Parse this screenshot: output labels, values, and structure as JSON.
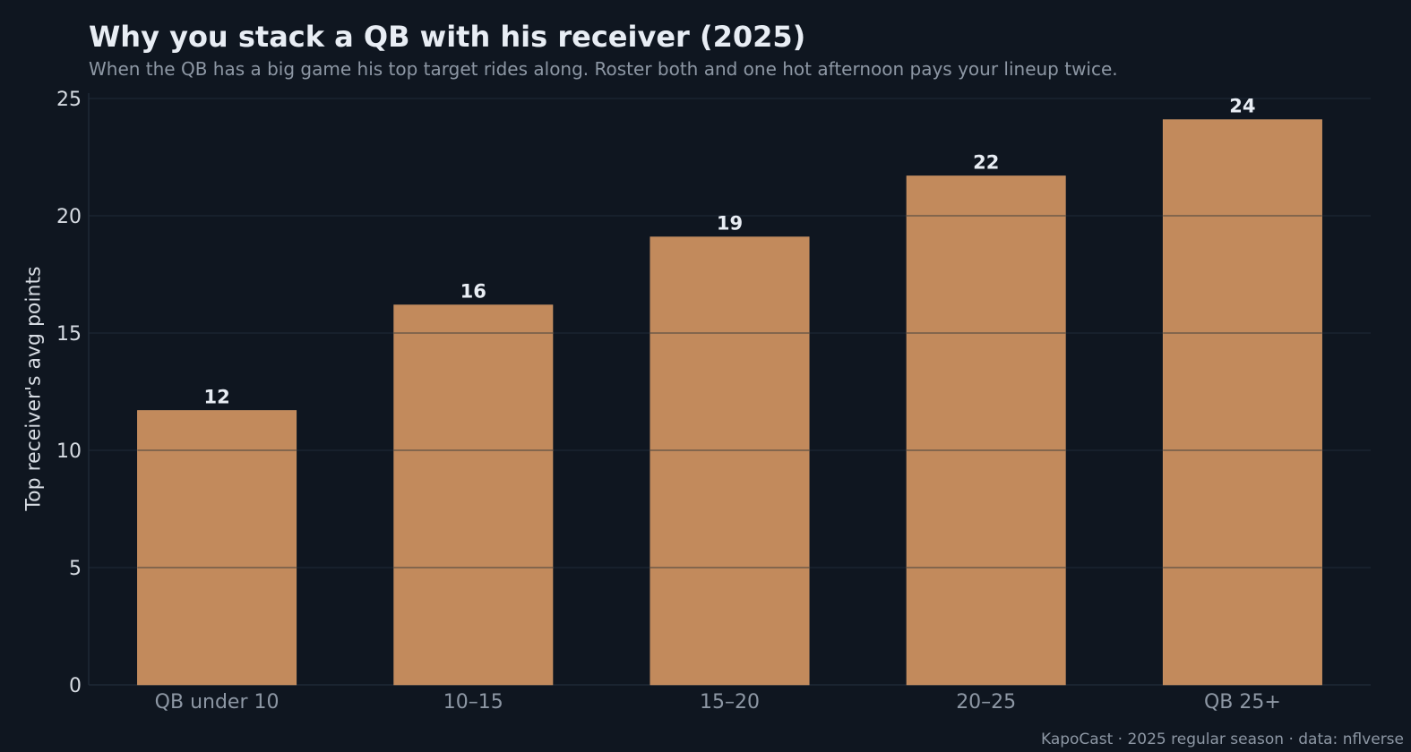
{
  "chart_data": {
    "type": "bar",
    "title": "Why you stack a QB with his receiver (2025)",
    "subtitle": "When the QB has a big game his top target rides along. Roster both and one hot afternoon pays your lineup twice.",
    "xlabel": "",
    "ylabel": "Top receiver's avg points",
    "categories": [
      "QB under 10",
      "10–15",
      "15–20",
      "20–25",
      "QB 25+"
    ],
    "values": [
      11.7,
      16.2,
      19.1,
      21.7,
      24.1
    ],
    "value_labels": [
      "12",
      "16",
      "19",
      "22",
      "24"
    ],
    "ylim": [
      0,
      25
    ],
    "yticks": [
      0,
      5,
      10,
      15,
      20,
      25
    ],
    "grid": "horizontal",
    "bar_color": "#c28a5c",
    "background": "#0f1620",
    "footer": "KapoCast · 2025 regular season · data: nflverse"
  }
}
